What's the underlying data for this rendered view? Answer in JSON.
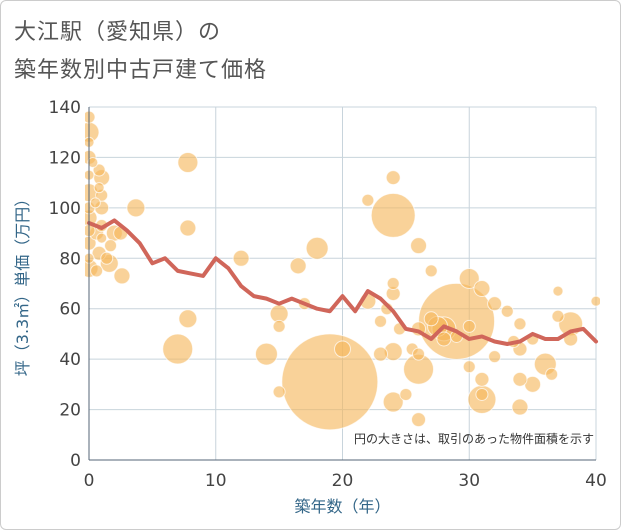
{
  "title_line1": "大江駅（愛知県）の",
  "title_line2": "築年数別中古戸建て価格",
  "chart_data": {
    "type": "scatter",
    "xlabel": "築年数（年）",
    "ylabel": "坪（3.3㎡）単価（万円）",
    "xlim": [
      0,
      40
    ],
    "ylim": [
      0,
      140
    ],
    "xticks": [
      0,
      10,
      20,
      30,
      40
    ],
    "yticks": [
      0,
      20,
      40,
      60,
      80,
      100,
      120,
      140
    ],
    "grid": true,
    "note": "円の大きさは、取引のあった物件面積を示す",
    "bubble_color": "#f5b75a",
    "line_color": "#d0665a",
    "bubbles": [
      {
        "x": 0,
        "y": 136,
        "s": 6
      },
      {
        "x": 0,
        "y": 130,
        "s": 10
      },
      {
        "x": 0,
        "y": 126,
        "s": 5
      },
      {
        "x": 0,
        "y": 120,
        "s": 7
      },
      {
        "x": 0,
        "y": 113,
        "s": 5
      },
      {
        "x": 0,
        "y": 106,
        "s": 9
      },
      {
        "x": 0,
        "y": 100,
        "s": 6
      },
      {
        "x": 0,
        "y": 96,
        "s": 8
      },
      {
        "x": 0,
        "y": 91,
        "s": 6
      },
      {
        "x": 0,
        "y": 86,
        "s": 7
      },
      {
        "x": 0,
        "y": 80,
        "s": 5
      },
      {
        "x": 0,
        "y": 76,
        "s": 9
      },
      {
        "x": 0.3,
        "y": 118,
        "s": 5
      },
      {
        "x": 0.5,
        "y": 102,
        "s": 5
      },
      {
        "x": 0.6,
        "y": 90,
        "s": 7
      },
      {
        "x": 0.8,
        "y": 115,
        "s": 6
      },
      {
        "x": 0.8,
        "y": 108,
        "s": 5
      },
      {
        "x": 1,
        "y": 112,
        "s": 8
      },
      {
        "x": 1,
        "y": 105,
        "s": 6
      },
      {
        "x": 1,
        "y": 100,
        "s": 7
      },
      {
        "x": 1,
        "y": 93,
        "s": 6
      },
      {
        "x": 1,
        "y": 88,
        "s": 5
      },
      {
        "x": 0.8,
        "y": 82,
        "s": 7
      },
      {
        "x": 0.6,
        "y": 75,
        "s": 6
      },
      {
        "x": 1.4,
        "y": 80,
        "s": 6
      },
      {
        "x": 1.7,
        "y": 85,
        "s": 6
      },
      {
        "x": 1.6,
        "y": 78,
        "s": 9
      },
      {
        "x": 2,
        "y": 90,
        "s": 8
      },
      {
        "x": 2.5,
        "y": 90,
        "s": 7
      },
      {
        "x": 2.6,
        "y": 73,
        "s": 8
      },
      {
        "x": 3.7,
        "y": 100,
        "s": 9
      },
      {
        "x": 7,
        "y": 44,
        "s": 15
      },
      {
        "x": 7.8,
        "y": 118,
        "s": 10
      },
      {
        "x": 7.8,
        "y": 92,
        "s": 8
      },
      {
        "x": 7.8,
        "y": 56,
        "s": 9
      },
      {
        "x": 12,
        "y": 80,
        "s": 8
      },
      {
        "x": 14,
        "y": 42,
        "s": 11
      },
      {
        "x": 15,
        "y": 27,
        "s": 6
      },
      {
        "x": 15,
        "y": 53,
        "s": 6
      },
      {
        "x": 15,
        "y": 58,
        "s": 9
      },
      {
        "x": 16.5,
        "y": 77,
        "s": 8
      },
      {
        "x": 17,
        "y": 62,
        "s": 6
      },
      {
        "x": 18,
        "y": 84,
        "s": 11
      },
      {
        "x": 19,
        "y": 31,
        "s": 48
      },
      {
        "x": 20,
        "y": 44,
        "s": 8
      },
      {
        "x": 22,
        "y": 103,
        "s": 6
      },
      {
        "x": 22,
        "y": 63,
        "s": 8
      },
      {
        "x": 23,
        "y": 42,
        "s": 7
      },
      {
        "x": 23,
        "y": 55,
        "s": 6
      },
      {
        "x": 23.5,
        "y": 60,
        "s": 6
      },
      {
        "x": 24,
        "y": 112,
        "s": 7
      },
      {
        "x": 24,
        "y": 97,
        "s": 22
      },
      {
        "x": 24,
        "y": 70,
        "s": 6
      },
      {
        "x": 24,
        "y": 66,
        "s": 7
      },
      {
        "x": 24,
        "y": 43,
        "s": 9
      },
      {
        "x": 24,
        "y": 23,
        "s": 10
      },
      {
        "x": 24.5,
        "y": 52,
        "s": 6
      },
      {
        "x": 25,
        "y": 26,
        "s": 6
      },
      {
        "x": 25.5,
        "y": 44,
        "s": 6
      },
      {
        "x": 26,
        "y": 85,
        "s": 8
      },
      {
        "x": 26,
        "y": 52,
        "s": 7
      },
      {
        "x": 26,
        "y": 42,
        "s": 6
      },
      {
        "x": 26,
        "y": 36,
        "s": 15
      },
      {
        "x": 26,
        "y": 16,
        "s": 7
      },
      {
        "x": 27,
        "y": 75,
        "s": 6
      },
      {
        "x": 27,
        "y": 56,
        "s": 7
      },
      {
        "x": 27.5,
        "y": 53,
        "s": 10
      },
      {
        "x": 28,
        "y": 52,
        "s": 12
      },
      {
        "x": 28,
        "y": 48,
        "s": 7
      },
      {
        "x": 29,
        "y": 55,
        "s": 38
      },
      {
        "x": 29,
        "y": 49,
        "s": 6
      },
      {
        "x": 30,
        "y": 72,
        "s": 10
      },
      {
        "x": 30,
        "y": 53,
        "s": 6
      },
      {
        "x": 30,
        "y": 37,
        "s": 6
      },
      {
        "x": 31,
        "y": 68,
        "s": 8
      },
      {
        "x": 31,
        "y": 32,
        "s": 7
      },
      {
        "x": 31,
        "y": 26,
        "s": 6
      },
      {
        "x": 31,
        "y": 24,
        "s": 14
      },
      {
        "x": 32,
        "y": 62,
        "s": 7
      },
      {
        "x": 32,
        "y": 41,
        "s": 6
      },
      {
        "x": 33,
        "y": 59,
        "s": 6
      },
      {
        "x": 33.5,
        "y": 47,
        "s": 6
      },
      {
        "x": 34,
        "y": 54,
        "s": 6
      },
      {
        "x": 34,
        "y": 44,
        "s": 7
      },
      {
        "x": 34,
        "y": 32,
        "s": 7
      },
      {
        "x": 34,
        "y": 21,
        "s": 8
      },
      {
        "x": 35,
        "y": 48,
        "s": 6
      },
      {
        "x": 35,
        "y": 30,
        "s": 8
      },
      {
        "x": 36,
        "y": 38,
        "s": 11
      },
      {
        "x": 36.5,
        "y": 34,
        "s": 6
      },
      {
        "x": 37,
        "y": 67,
        "s": 5
      },
      {
        "x": 37,
        "y": 57,
        "s": 6
      },
      {
        "x": 38,
        "y": 54,
        "s": 12
      },
      {
        "x": 38,
        "y": 48,
        "s": 7
      },
      {
        "x": 40,
        "y": 63,
        "s": 5
      }
    ],
    "trend": {
      "x": [
        0,
        1,
        2,
        3,
        4,
        5,
        6,
        7,
        8,
        9,
        10,
        11,
        12,
        13,
        14,
        15,
        16,
        17,
        18,
        19,
        20,
        21,
        22,
        23,
        24,
        25,
        26,
        27,
        28,
        29,
        30,
        31,
        32,
        33,
        34,
        35,
        36,
        37,
        38,
        39,
        40
      ],
      "y": [
        94,
        92,
        95,
        91,
        86,
        78,
        80,
        75,
        74,
        73,
        80,
        76,
        69,
        65,
        64,
        62,
        64,
        62,
        60,
        59,
        65,
        59,
        67,
        64,
        59,
        52,
        51,
        48,
        53,
        51,
        48,
        49,
        47,
        46,
        47,
        50,
        48,
        48,
        51,
        52,
        47
      ]
    }
  }
}
